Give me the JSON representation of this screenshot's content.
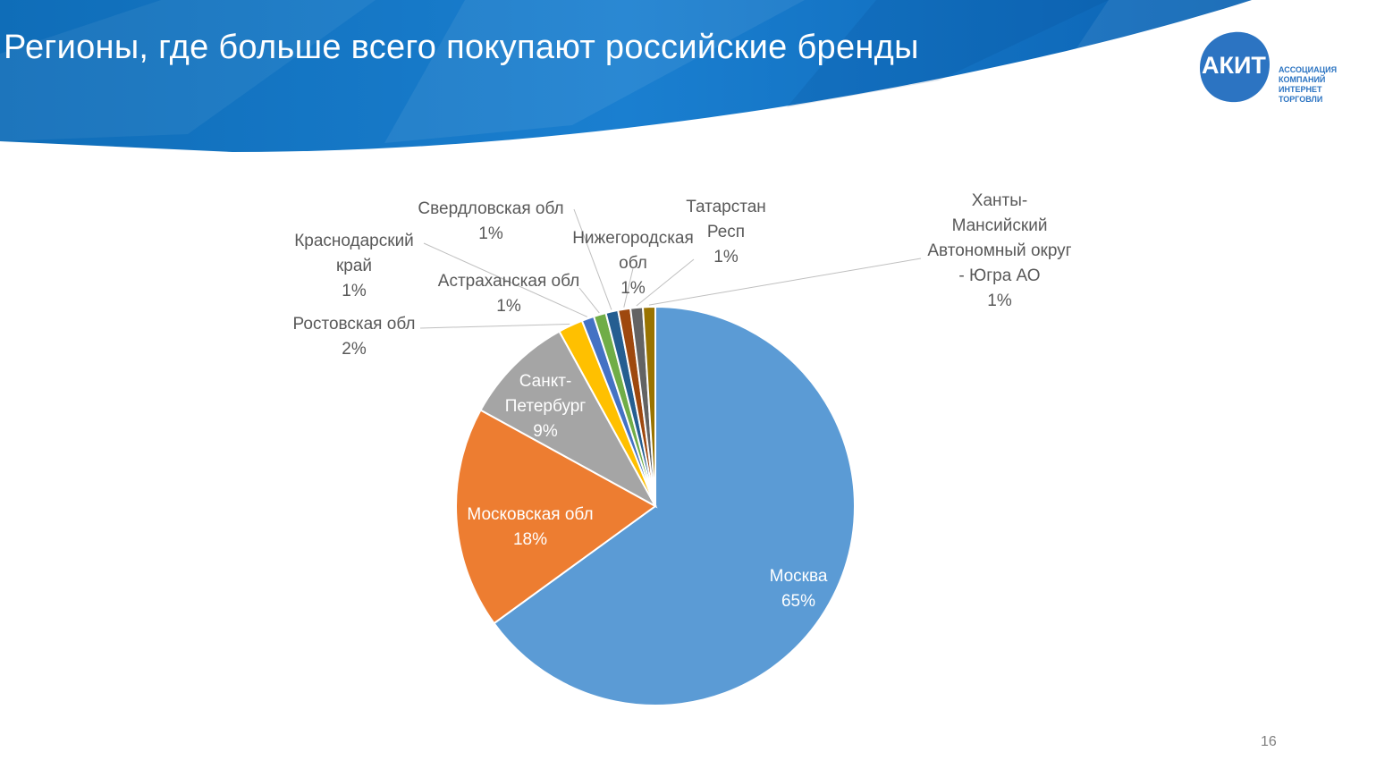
{
  "slide": {
    "title": "Регионы, где больше всего покупают российские бренды",
    "page_number": "16"
  },
  "logo": {
    "mark": "АКИТ",
    "tagline": [
      "АССОЦИАЦИЯ",
      "КОМПАНИЙ",
      "ИНТЕРНЕТ",
      "ТОРГОВЛИ"
    ],
    "color": "#2c74c2"
  },
  "chart_data": {
    "type": "pie",
    "title": "",
    "slices": [
      {
        "label": "Москва",
        "value": 65,
        "pct_label": "65%",
        "color": "#5b9bd5"
      },
      {
        "label": "Московская обл",
        "value": 18,
        "pct_label": "18%",
        "color": "#ed7d31"
      },
      {
        "label": "Санкт-Петербург",
        "value": 9,
        "pct_label": "9%",
        "color": "#a5a5a5"
      },
      {
        "label": "Ростовская обл",
        "value": 2,
        "pct_label": "2%",
        "color": "#ffc000"
      },
      {
        "label": "Краснодарский край",
        "value": 1,
        "pct_label": "1%",
        "color": "#4472c4"
      },
      {
        "label": "Астраханская обл",
        "value": 1,
        "pct_label": "1%",
        "color": "#70ad47"
      },
      {
        "label": "Свердловская обл",
        "value": 1,
        "pct_label": "1%",
        "color": "#255e91"
      },
      {
        "label": "Нижегородская обл",
        "value": 1,
        "pct_label": "1%",
        "color": "#9e480e"
      },
      {
        "label": "Татарстан Респ",
        "value": 1,
        "pct_label": "1%",
        "color": "#636363"
      },
      {
        "label": "Ханты-Мансийский Автономный округ - Югра АО",
        "value": 1,
        "pct_label": "1%",
        "color": "#997300"
      }
    ]
  }
}
